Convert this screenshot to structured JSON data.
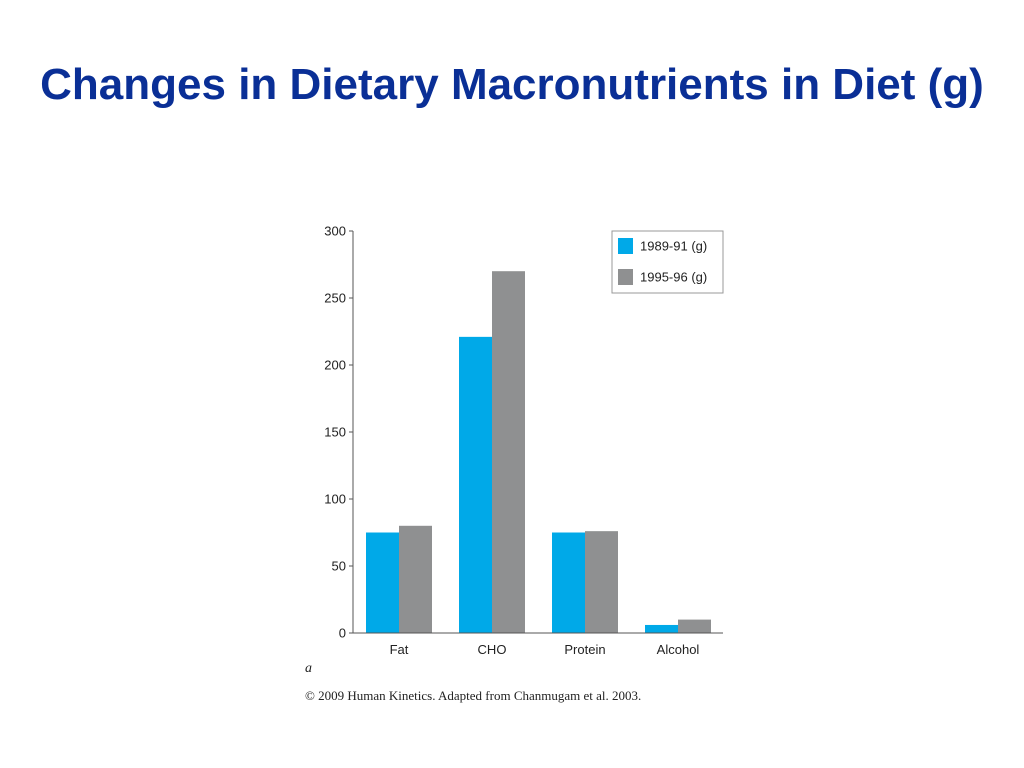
{
  "title": "Changes in Dietary Macronutrients in Diet (g)",
  "panel_label": "a",
  "credit": "© 2009 Human Kinetics. Adapted from Chanmugam et al. 2003.",
  "colors": {
    "title": "#0a2f96",
    "series_1": "#00a9e8",
    "series_2": "#8f9091",
    "axis": "#555555"
  },
  "chart_data": {
    "type": "bar",
    "title": "",
    "xlabel": "",
    "ylabel": "",
    "categories": [
      "Fat",
      "CHO",
      "Protein",
      "Alcohol"
    ],
    "series": [
      {
        "name": "1989-91 (g)",
        "values": [
          75,
          221,
          75,
          6
        ]
      },
      {
        "name": "1995-96 (g)",
        "values": [
          80,
          270,
          76,
          10
        ]
      }
    ],
    "ylim": [
      0,
      300
    ],
    "yticks": [
      0,
      50,
      100,
      150,
      200,
      250,
      300
    ],
    "grid": false,
    "legend_position": "top-right"
  }
}
